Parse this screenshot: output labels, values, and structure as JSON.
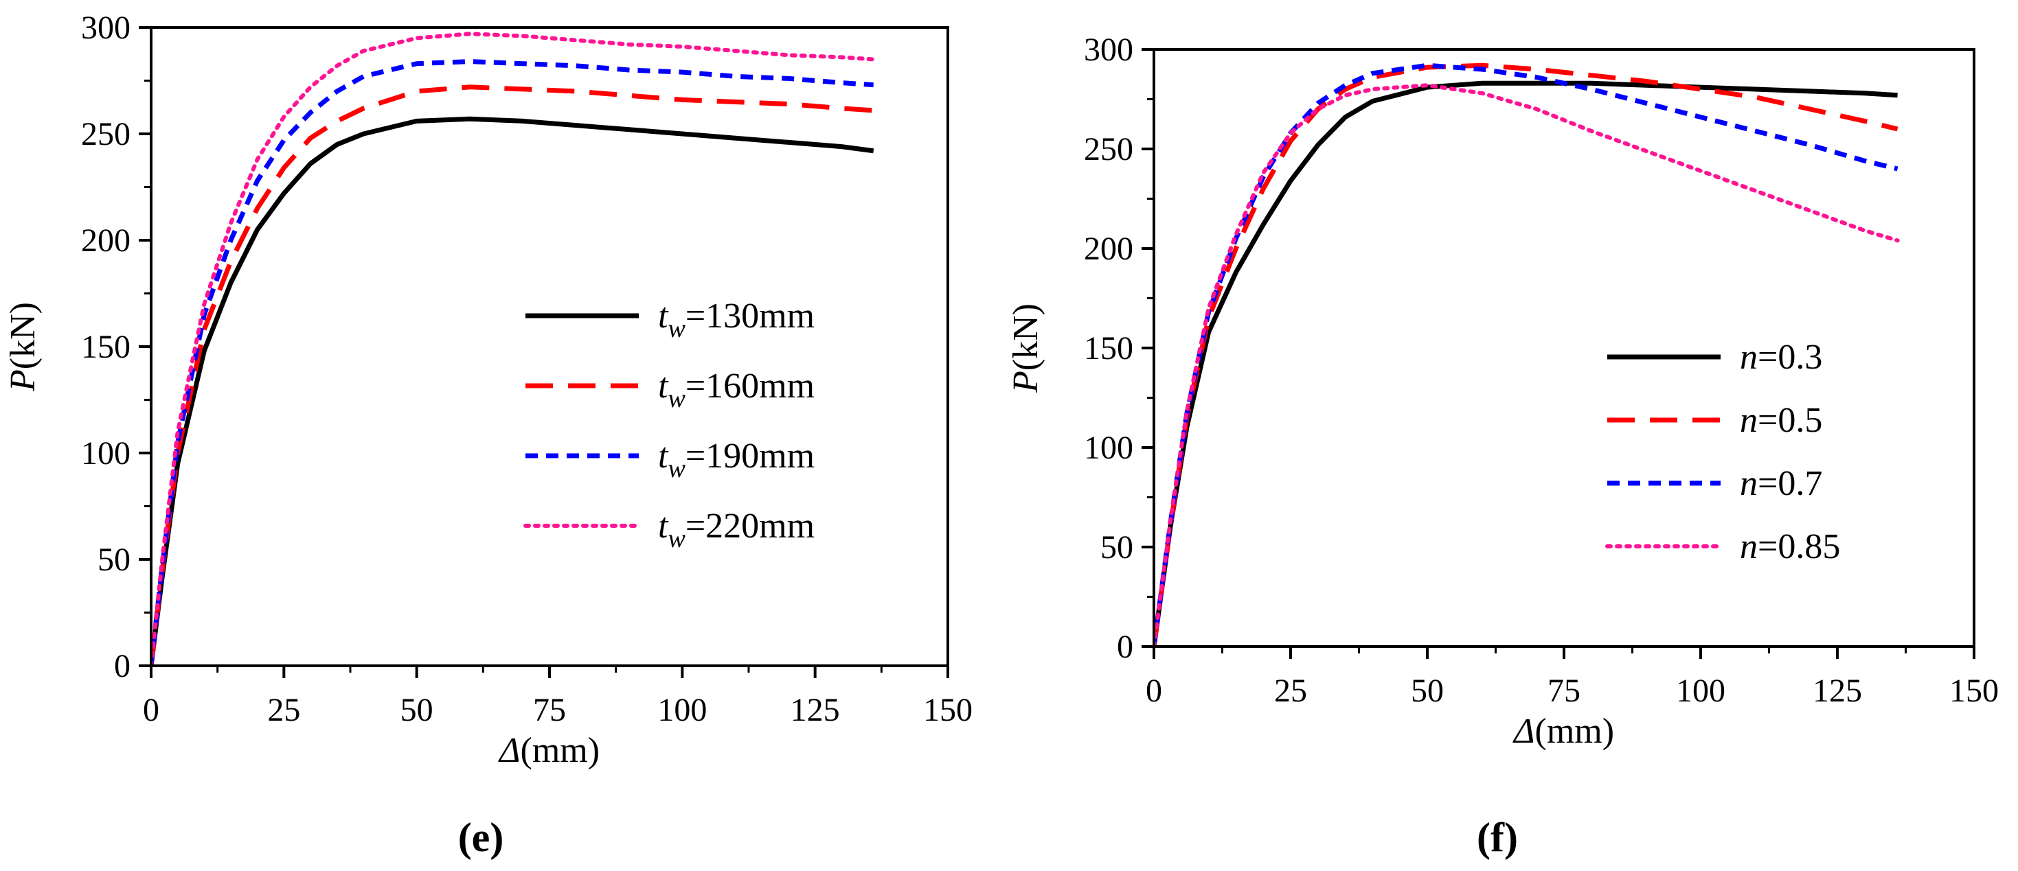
{
  "chart_data": [
    {
      "type": "line",
      "panel_label": "(e)",
      "xlabel": {
        "sym": "Δ",
        "unit": "(mm)"
      },
      "ylabel": {
        "sym": "P",
        "unit": "(kN)"
      },
      "xlim": [
        0,
        150
      ],
      "ylim": [
        0,
        300
      ],
      "xticks": [
        0,
        25,
        50,
        75,
        100,
        125,
        150
      ],
      "yticks": [
        0,
        50,
        100,
        150,
        200,
        250,
        300
      ],
      "grid": false,
      "legend_position": "center-right",
      "legend_var": {
        "sym": "t",
        "sub": "w"
      },
      "series": [
        {
          "name": "t_w=130mm",
          "legend_value": "=130mm",
          "color": "#000000",
          "style": "solid",
          "points": [
            [
              0,
              0
            ],
            [
              2,
              40
            ],
            [
              5,
              95
            ],
            [
              10,
              148
            ],
            [
              15,
              180
            ],
            [
              20,
              205
            ],
            [
              25,
              222
            ],
            [
              30,
              236
            ],
            [
              35,
              245
            ],
            [
              40,
              250
            ],
            [
              50,
              256
            ],
            [
              60,
              257
            ],
            [
              70,
              256
            ],
            [
              80,
              254
            ],
            [
              90,
              252
            ],
            [
              100,
              250
            ],
            [
              110,
              248
            ],
            [
              120,
              246
            ],
            [
              130,
              244
            ],
            [
              136,
              242
            ]
          ]
        },
        {
          "name": "t_w=160mm",
          "legend_value": "=160mm",
          "color": "#ff0000",
          "style": "dash",
          "points": [
            [
              0,
              0
            ],
            [
              2,
              43
            ],
            [
              5,
              100
            ],
            [
              10,
              158
            ],
            [
              15,
              190
            ],
            [
              20,
              215
            ],
            [
              25,
              234
            ],
            [
              30,
              248
            ],
            [
              35,
              256
            ],
            [
              40,
              262
            ],
            [
              50,
              270
            ],
            [
              60,
              272
            ],
            [
              70,
              271
            ],
            [
              80,
              270
            ],
            [
              90,
              268
            ],
            [
              100,
              266
            ],
            [
              110,
              265
            ],
            [
              120,
              264
            ],
            [
              130,
              262
            ],
            [
              136,
              261
            ]
          ]
        },
        {
          "name": "t_w=190mm",
          "legend_value": "=190mm",
          "color": "#0000ff",
          "style": "shortdash",
          "points": [
            [
              0,
              0
            ],
            [
              2,
              45
            ],
            [
              5,
              105
            ],
            [
              10,
              165
            ],
            [
              15,
              200
            ],
            [
              20,
              228
            ],
            [
              25,
              247
            ],
            [
              30,
              260
            ],
            [
              35,
              270
            ],
            [
              40,
              277
            ],
            [
              50,
              283
            ],
            [
              60,
              284
            ],
            [
              70,
              283
            ],
            [
              80,
              282
            ],
            [
              90,
              280
            ],
            [
              100,
              279
            ],
            [
              110,
              277
            ],
            [
              120,
              276
            ],
            [
              130,
              274
            ],
            [
              136,
              273
            ]
          ]
        },
        {
          "name": "t_w=220mm",
          "legend_value": "=220mm",
          "color": "#ff1493",
          "style": "dot",
          "points": [
            [
              0,
              0
            ],
            [
              2,
              48
            ],
            [
              5,
              110
            ],
            [
              10,
              170
            ],
            [
              15,
              208
            ],
            [
              20,
              238
            ],
            [
              25,
              258
            ],
            [
              30,
              272
            ],
            [
              35,
              282
            ],
            [
              40,
              289
            ],
            [
              50,
              295
            ],
            [
              60,
              297
            ],
            [
              70,
              296
            ],
            [
              80,
              294
            ],
            [
              90,
              292
            ],
            [
              100,
              291
            ],
            [
              110,
              289
            ],
            [
              120,
              287
            ],
            [
              130,
              286
            ],
            [
              136,
              285
            ]
          ]
        }
      ]
    },
    {
      "type": "line",
      "panel_label": "(f)",
      "xlabel": {
        "sym": "Δ",
        "unit": "(mm)"
      },
      "ylabel": {
        "sym": "P",
        "unit": "(kN)"
      },
      "xlim": [
        0,
        150
      ],
      "ylim": [
        0,
        300
      ],
      "xticks": [
        0,
        25,
        50,
        75,
        100,
        125,
        150
      ],
      "yticks": [
        0,
        50,
        100,
        150,
        200,
        250,
        300
      ],
      "grid": false,
      "legend_position": "center-right",
      "legend_var": {
        "sym": "n",
        "sub": ""
      },
      "series": [
        {
          "name": "n=0.3",
          "legend_value": "=0.3",
          "color": "#000000",
          "style": "solid",
          "points": [
            [
              0,
              0
            ],
            [
              3,
              60
            ],
            [
              6,
              110
            ],
            [
              10,
              158
            ],
            [
              15,
              188
            ],
            [
              20,
              212
            ],
            [
              25,
              234
            ],
            [
              30,
              252
            ],
            [
              35,
              266
            ],
            [
              40,
              274
            ],
            [
              50,
              281
            ],
            [
              60,
              283
            ],
            [
              70,
              283
            ],
            [
              80,
              283
            ],
            [
              90,
              282
            ],
            [
              100,
              281
            ],
            [
              110,
              280
            ],
            [
              120,
              279
            ],
            [
              130,
              278
            ],
            [
              136,
              277
            ]
          ]
        },
        {
          "name": "n=0.5",
          "legend_value": "=0.5",
          "color": "#ff0000",
          "style": "dash",
          "points": [
            [
              0,
              0
            ],
            [
              3,
              60
            ],
            [
              6,
              115
            ],
            [
              10,
              165
            ],
            [
              15,
              200
            ],
            [
              20,
              230
            ],
            [
              25,
              254
            ],
            [
              30,
              270
            ],
            [
              35,
              280
            ],
            [
              40,
              286
            ],
            [
              50,
              291
            ],
            [
              60,
              292
            ],
            [
              70,
              290
            ],
            [
              80,
              287
            ],
            [
              90,
              284
            ],
            [
              100,
              280
            ],
            [
              110,
              276
            ],
            [
              120,
              270
            ],
            [
              130,
              264
            ],
            [
              136,
              260
            ]
          ]
        },
        {
          "name": "n=0.7",
          "legend_value": "=0.7",
          "color": "#0000ff",
          "style": "shortdash",
          "points": [
            [
              0,
              0
            ],
            [
              3,
              62
            ],
            [
              6,
              117
            ],
            [
              10,
              168
            ],
            [
              15,
              205
            ],
            [
              20,
              236
            ],
            [
              25,
              258
            ],
            [
              30,
              273
            ],
            [
              35,
              282
            ],
            [
              40,
              288
            ],
            [
              50,
              292
            ],
            [
              60,
              290
            ],
            [
              70,
              286
            ],
            [
              80,
              280
            ],
            [
              90,
              273
            ],
            [
              100,
              266
            ],
            [
              110,
              259
            ],
            [
              120,
              252
            ],
            [
              130,
              244
            ],
            [
              136,
              240
            ]
          ]
        },
        {
          "name": "n=0.85",
          "legend_value": "=0.85",
          "color": "#ff1493",
          "style": "dot",
          "points": [
            [
              0,
              0
            ],
            [
              3,
              63
            ],
            [
              6,
              118
            ],
            [
              10,
              170
            ],
            [
              15,
              207
            ],
            [
              20,
              238
            ],
            [
              25,
              258
            ],
            [
              30,
              270
            ],
            [
              35,
              277
            ],
            [
              40,
              280
            ],
            [
              50,
              282
            ],
            [
              60,
              278
            ],
            [
              70,
              270
            ],
            [
              80,
              259
            ],
            [
              90,
              249
            ],
            [
              100,
              239
            ],
            [
              110,
              229
            ],
            [
              120,
              219
            ],
            [
              130,
              209
            ],
            [
              136,
              204
            ]
          ]
        }
      ]
    }
  ]
}
